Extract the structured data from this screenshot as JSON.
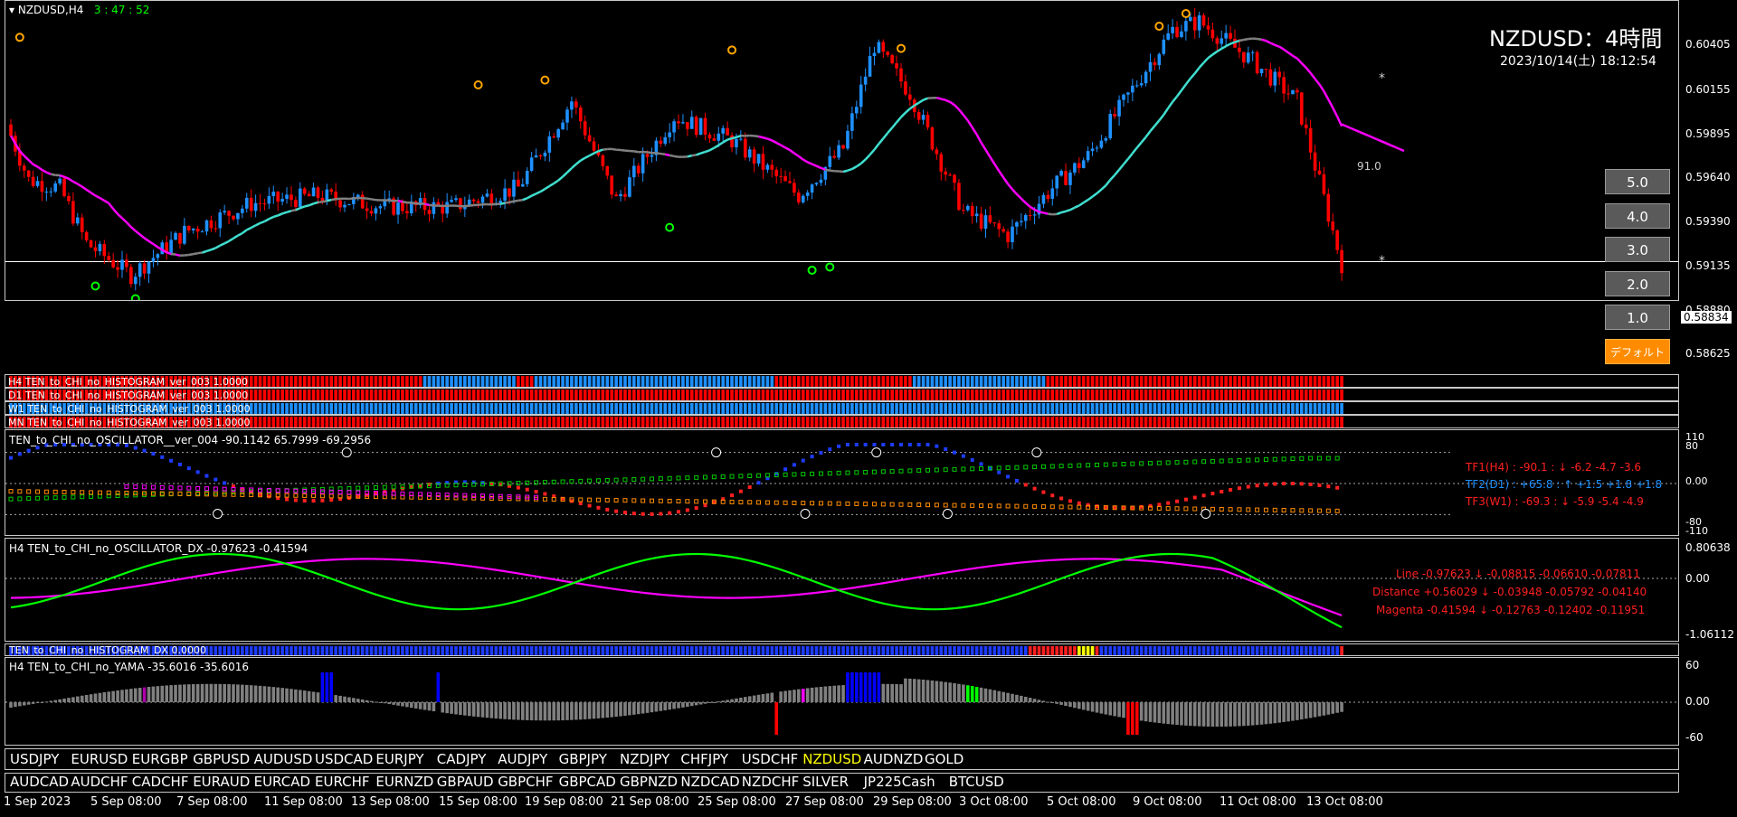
{
  "chart_header": {
    "symbol_tf": "NZDUSD,H4",
    "countdown": "3 : 47 : 52"
  },
  "big_title": "NZDUSD：4時間",
  "datetime": "2023/10/14(土) 18:12:54",
  "marker_91": "91.0",
  "star": "*",
  "price_axis": [
    "0.60405",
    "0.60155",
    "0.59895",
    "0.59640",
    "0.59390",
    "0.59135",
    "0.58880",
    "0.58625"
  ],
  "current_price": "0.58834",
  "level_buttons": [
    "5.0",
    "4.0",
    "3.0",
    "2.0",
    "1.0"
  ],
  "default_button": "デフォルト",
  "histogram_rows": [
    "H4 TEN_to_CHI_no_HISTOGRAM_ver_003 1.0000",
    "D1 TEN_to_CHI_no_HISTOGRAM_ver_003 1.0000",
    "W1 TEN_to_CHI_no_HISTOGRAM_ver_003 1.0000",
    "MN TEN_to_CHI_no_HISTOGRAM_ver_003 1.0000"
  ],
  "hist_scale": [
    "0",
    "1"
  ],
  "oscillator": {
    "title": "TEN_to_CHI_no_OSCILLATOR__ver_004 -90.1142 65.7999 -69.2956",
    "scale": [
      "110",
      "80",
      "0.00",
      "-80",
      "-110"
    ],
    "tf1": "TF1(H4) : -90.1 : ↓ -6.2 -4.7 -3.6",
    "tf2": "TF2(D1) : +65.8 : ↑ +1.5 +1.8 +1.8",
    "tf3": "TF3(W1) : -69.3 : ↓ -5.9 -5.4 -4.9"
  },
  "dx": {
    "title": "H4 TEN_to_CHI_no_OSCILLATOR_DX -0.97623 -0.41594",
    "scale": [
      "0.80638",
      "0.00",
      "-1.06112"
    ],
    "line": "Line -0.97623 ↓ -0.08815 -0.06610 -0.07811",
    "distance": "Distance +0.56029 ↓ -0.03948 -0.05792 -0.04140",
    "magenta": "Magenta -0.41594 ↓ -0.12763 -0.12402 -0.11951"
  },
  "hist_dx": {
    "title": "TEN_to_CHI_no_HISTOGRAM_DX 0.0000",
    "scale": [
      "0",
      "1"
    ]
  },
  "yama": {
    "title": "H4  TEN_to_CHI_no_YAMA -35.6016 -35.6016",
    "scale": [
      "60",
      "0.00",
      "-60"
    ]
  },
  "symbols_row1": [
    "USDJPY",
    "EURUSD",
    "EURGBP",
    "GBPUSD",
    "AUDUSD",
    "USDCAD",
    "EURJPY",
    "CADJPY",
    "AUDJPY",
    "GBPJPY",
    "NZDJPY",
    "CHFJPY",
    "USDCHF",
    "NZDUSD",
    "AUDNZD",
    "GOLD"
  ],
  "symbols_row2": [
    "AUDCAD",
    "AUDCHF",
    "CADCHF",
    "EURAUD",
    "EURCAD",
    "EURCHF",
    "EURNZD",
    "GBPAUD",
    "GBPCHF",
    "GBPCAD",
    "GBPNZD",
    "NZDCAD",
    "NZDCHF",
    "SILVER",
    "JP225Cash",
    "BTCUSD"
  ],
  "active_symbol": "NZDUSD",
  "symbol_scale": [
    "0",
    "0"
  ],
  "time_axis": [
    "1 Sep 2023",
    "5 Sep 08:00",
    "7 Sep 08:00",
    "11 Sep 08:00",
    "13 Sep 08:00",
    "15 Sep 08:00",
    "19 Sep 08:00",
    "21 Sep 08:00",
    "25 Sep 08:00",
    "27 Sep 08:00",
    "29 Sep 08:00",
    "3 Oct 08:00",
    "5 Oct 08:00",
    "9 Oct 08:00",
    "11 Oct 08:00",
    "13 Oct 08:00"
  ],
  "colors": {
    "bull": "#1e90ff",
    "bear": "#ff0000",
    "ma_up": "#40e0d0",
    "ma_down": "#ff00ff",
    "ma_flat": "#808080",
    "osc_line": "#00ff00",
    "osc_magenta": "#ff00ff",
    "text_red": "#ff2020",
    "text_blue": "#1e90ff",
    "active": "#ffff00"
  }
}
